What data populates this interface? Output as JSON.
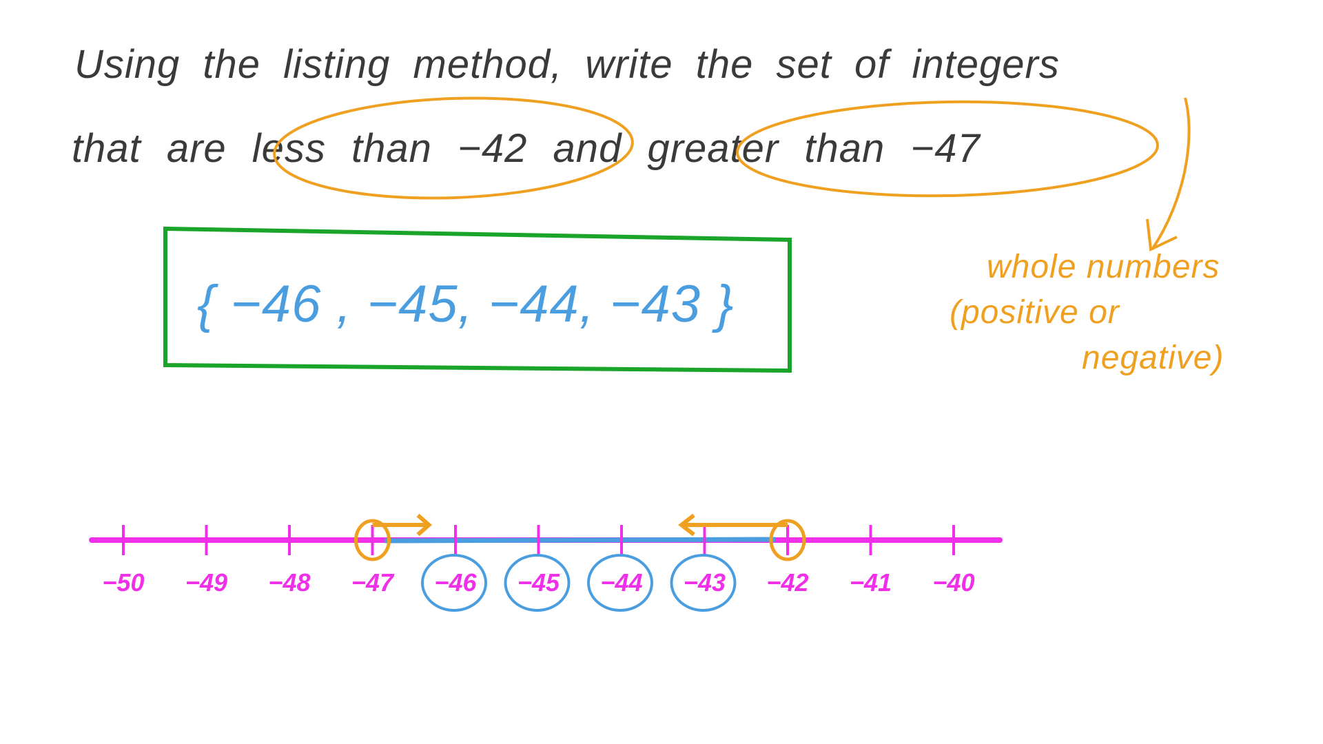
{
  "question": {
    "line1": "Using the listing method, write the set of integers",
    "line2": "that are less than −42 and greater than −47"
  },
  "answer": "{ −46 , −45, −44, −43 }",
  "note": {
    "line1": "whole numbers",
    "line2": "(positive or",
    "line3": "negative)"
  },
  "number_line": {
    "ticks": [
      "−50",
      "−49",
      "−48",
      "−47",
      "−46",
      "−45",
      "−44",
      "−43",
      "−42",
      "−41",
      "−40"
    ],
    "open_endpoints": [
      "−47",
      "−42"
    ],
    "circled_labels": [
      "−46",
      "−45",
      "−44",
      "−43"
    ]
  },
  "colors": {
    "text": "#3a3a3a",
    "highlight": "#f0a020",
    "answer": "#4a9ee0",
    "box": "#1aa52a",
    "number_line": "#f030e8"
  }
}
